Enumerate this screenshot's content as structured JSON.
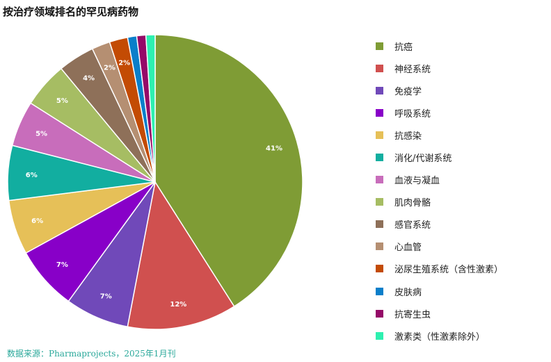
{
  "title": "按治疗领域排名的罕见病药物",
  "source": "数据来源：Pharmaprojects，2025年1月刊",
  "chart_data": {
    "type": "pie",
    "title": "按治疗领域排名的罕见病药物",
    "start_angle": "12 o'clock",
    "direction": "clockwise",
    "legend_position": "right",
    "slices": [
      {
        "name": "抗癌",
        "value": 41,
        "label": "41%",
        "color": "#7f9c35"
      },
      {
        "name": "神经系统",
        "value": 12,
        "label": "12%",
        "color": "#d0504f"
      },
      {
        "name": "免疫学",
        "value": 7,
        "label": "7%",
        "color": "#7049b9"
      },
      {
        "name": "呼吸系统",
        "value": 7,
        "label": "7%",
        "color": "#8800c8"
      },
      {
        "name": "抗感染",
        "value": 6,
        "label": "6%",
        "color": "#e6c058"
      },
      {
        "name": "消化/代谢系统",
        "value": 6,
        "label": "6%",
        "color": "#12aea0"
      },
      {
        "name": "血液与凝血",
        "value": 5,
        "label": "5%",
        "color": "#c86dbb"
      },
      {
        "name": "肌肉骨骼",
        "value": 5,
        "label": "5%",
        "color": "#a6bd63"
      },
      {
        "name": "感官系统",
        "value": 4,
        "label": "4%",
        "color": "#8e7059"
      },
      {
        "name": "心血管",
        "value": 2,
        "label": "2%",
        "color": "#b58f72"
      },
      {
        "name": "泌尿生殖系统（含性激素）",
        "value": 2,
        "label": "2%",
        "color": "#c34b04"
      },
      {
        "name": "皮肤病",
        "value": 1,
        "label": "",
        "color": "#0a7fca"
      },
      {
        "name": "抗寄生虫",
        "value": 1,
        "label": "",
        "color": "#950a68"
      },
      {
        "name": "激素类（性激素除外）",
        "value": 1,
        "label": "",
        "color": "#2ef0b0"
      }
    ]
  }
}
